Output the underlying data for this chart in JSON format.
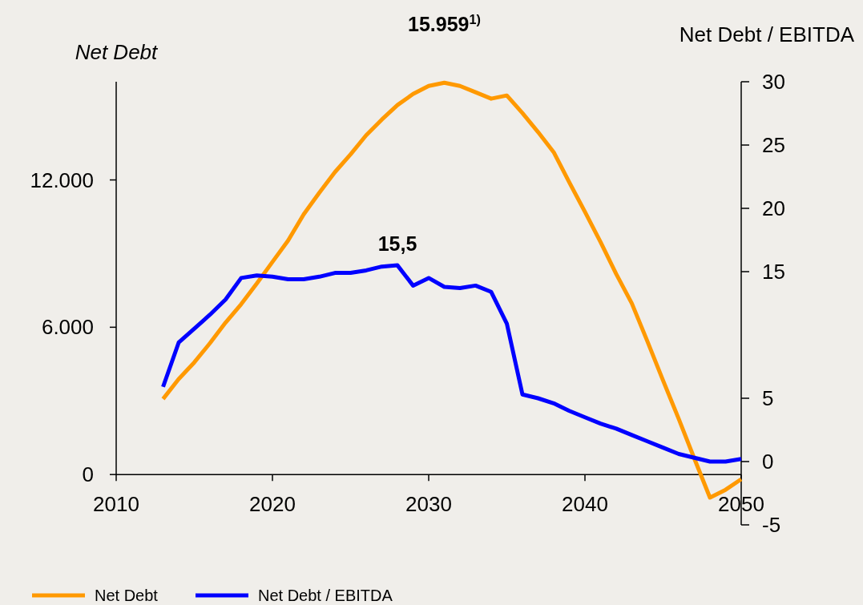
{
  "chart_data": {
    "type": "line",
    "ylabel": "Net Debt",
    "y2label": "Net Debt / EBITDA",
    "x": [
      2013,
      2014,
      2015,
      2016,
      2017,
      2018,
      2019,
      2020,
      2021,
      2022,
      2023,
      2024,
      2025,
      2026,
      2027,
      2028,
      2029,
      2030,
      2031,
      2032,
      2033,
      2034,
      2035,
      2036,
      2037,
      2038,
      2039,
      2040,
      2041,
      2042,
      2043,
      2044,
      2045,
      2046,
      2047,
      2048,
      2049,
      2050
    ],
    "series": [
      {
        "name": "Net Debt",
        "color": "#ff9900",
        "values": [
          3080,
          3890,
          4570,
          5350,
          6190,
          6940,
          7780,
          8660,
          9530,
          10600,
          11480,
          12320,
          13040,
          13820,
          14460,
          15050,
          15500,
          15830,
          15959,
          15830,
          15570,
          15310,
          15440,
          14720,
          13950,
          13130,
          11900,
          10700,
          9470,
          8170,
          6970,
          5420,
          3830,
          2270,
          650,
          -940,
          -620,
          -190
        ],
        "value_labels": [
          null,
          null,
          null,
          null,
          null,
          null,
          null,
          null,
          null,
          null,
          null,
          null,
          null,
          null,
          null,
          null,
          null,
          null,
          "15.959$^{1)}$",
          null,
          null,
          null,
          null,
          null,
          null,
          null,
          null,
          null,
          null,
          null,
          null,
          null,
          null,
          null,
          null,
          null,
          null,
          null
        ]
      },
      {
        "name": "Net Debt / EBITDA",
        "color": "#0000ff",
        "axis": "y2",
        "values": [
          5.9,
          9.4,
          10.5,
          11.6,
          12.8,
          14.5,
          14.7,
          14.6,
          14.4,
          14.4,
          14.6,
          14.9,
          14.9,
          15.1,
          15.4,
          15.5,
          13.9,
          14.5,
          13.8,
          13.7,
          13.9,
          13.4,
          10.9,
          5.3,
          5.0,
          4.6,
          4.0,
          3.5,
          3.0,
          2.6,
          2.1,
          1.6,
          1.1,
          0.6,
          0.3,
          0.0,
          0.0,
          0.2
        ],
        "value_labels": [
          null,
          null,
          null,
          null,
          null,
          null,
          null,
          null,
          null,
          null,
          null,
          null,
          null,
          null,
          null,
          "15,5",
          null,
          null,
          null,
          null,
          null,
          null,
          null,
          null,
          null,
          null,
          null,
          null,
          null,
          null,
          null,
          null,
          null,
          null,
          null,
          null,
          null,
          null
        ]
      }
    ],
    "xlim": [
      2010,
      2050
    ],
    "xticks": [
      2010,
      2020,
      2030,
      2040,
      2050
    ],
    "ylim": [
      -2050,
      16000
    ],
    "yticks": [
      0,
      {
        "value": 6000,
        "label": "6.000"
      },
      {
        "value": 12000,
        "label": "12.000"
      }
    ],
    "y2lim": [
      -5,
      30
    ],
    "y2ticks": [
      -5,
      0,
      5,
      15,
      20,
      25,
      30
    ],
    "grid": false,
    "legend": "bottom left",
    "line_style": "solid",
    "marker": "none"
  }
}
